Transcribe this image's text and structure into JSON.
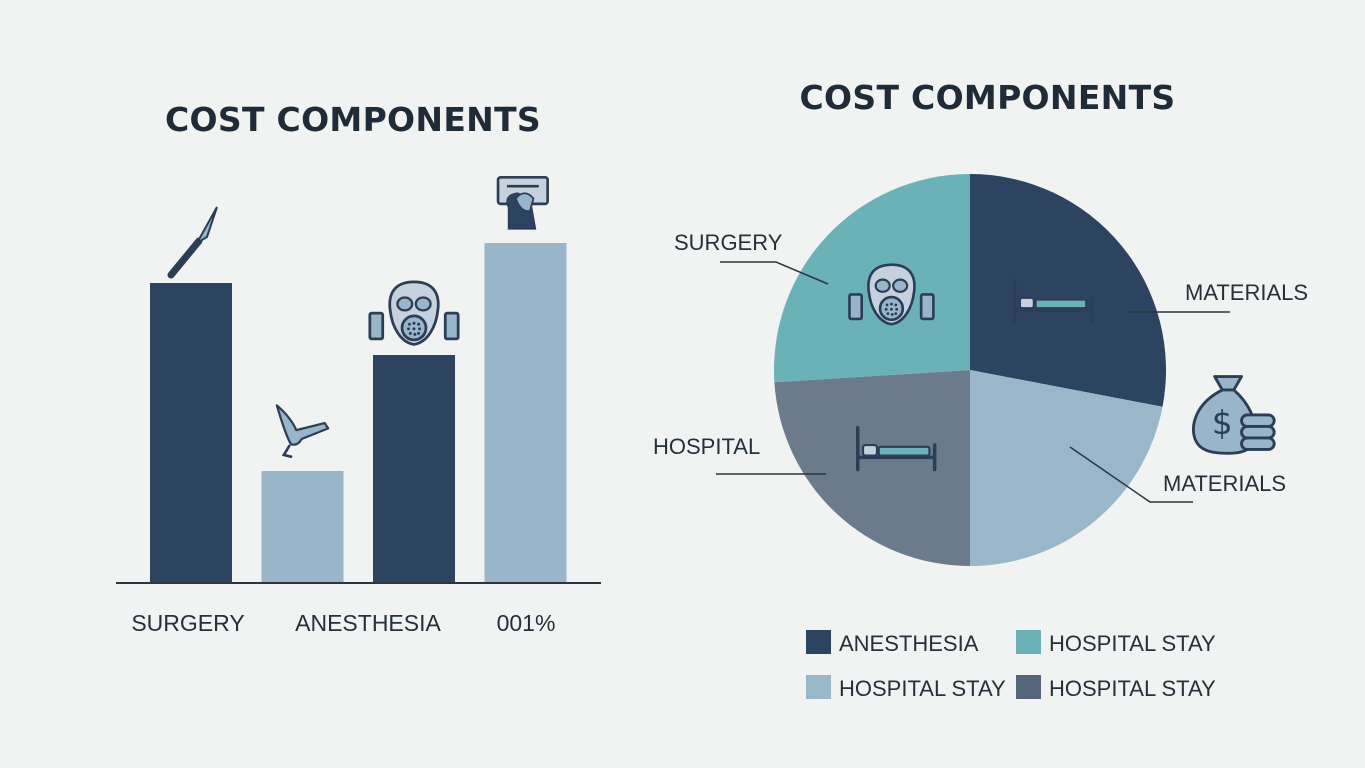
{
  "chart_data": [
    {
      "type": "bar",
      "title": "COST COMPONENTS",
      "categories": [
        "SURGERY",
        "",
        "ANESTHESIA",
        "001%"
      ],
      "values": [
        300,
        112,
        228,
        340
      ],
      "ylim": [
        0,
        400
      ],
      "grid": false,
      "colors": [
        "#2d4461",
        "#98b5c9",
        "#2d4461",
        "#98b5c9"
      ],
      "icons": [
        "scalpel-icon",
        "surgical-tool-icon",
        "gas-mask-icon",
        "supplies-box-icon"
      ]
    },
    {
      "type": "pie",
      "title": "COST COMPONENTS",
      "slices": [
        {
          "label": "MATERIALS",
          "value": 28,
          "color": "#2d4461",
          "icon": "hospital-bed-icon"
        },
        {
          "label": "MATERIALS",
          "value": 22,
          "color": "#9ab6c9",
          "icon": "money-bag-icon"
        },
        {
          "label": "HOSPITAL",
          "value": 24,
          "color": "#6b7b8b",
          "icon": "hospital-bed-icon"
        },
        {
          "label": "SURGERY",
          "value": 26,
          "color": "#6bb2b8",
          "icon": "gas-mask-icon"
        }
      ],
      "legend": {
        "placement": "bottom",
        "entries": [
          {
            "label": "ANESTHESIA",
            "color": "#2d4461"
          },
          {
            "label": "HOSPITAL STAY",
            "color": "#6bb2b8"
          },
          {
            "label": "HOSPITAL STAY",
            "color": "#9ab6c9"
          },
          {
            "label": "HOSPITAL STAY",
            "color": "#56667a"
          }
        ]
      }
    }
  ]
}
